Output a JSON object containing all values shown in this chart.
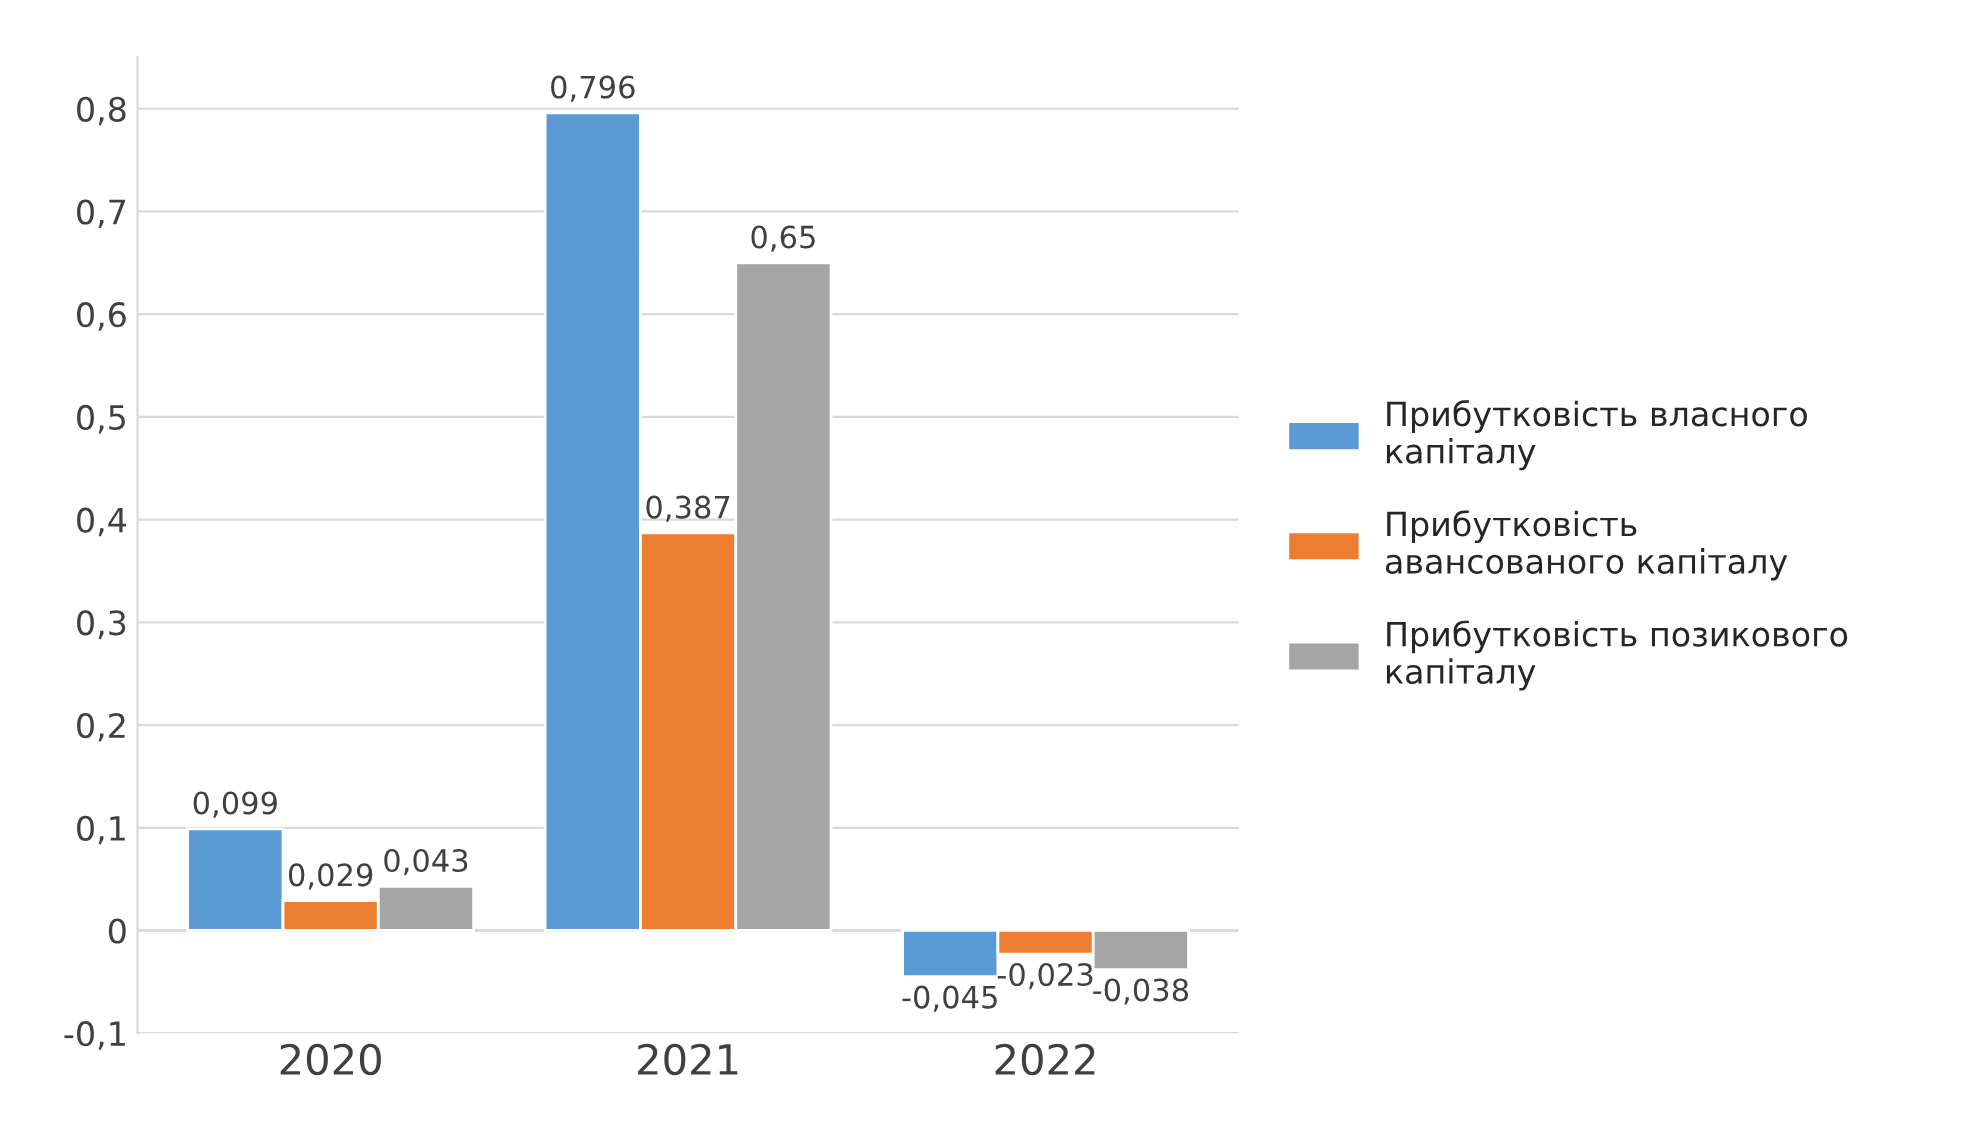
{
  "chart_data": {
    "type": "bar",
    "categories": [
      "2020",
      "2021",
      "2022"
    ],
    "series": [
      {
        "name": "Прибутковість власного\nкапіталу",
        "color": "#5b9bd5",
        "values": [
          0.099,
          0.796,
          -0.045
        ],
        "value_labels": [
          "0,099",
          "0,796",
          "-0,045"
        ]
      },
      {
        "name": "Прибутковість\nавансованого капіталу",
        "color": "#ed7d31",
        "values": [
          0.029,
          0.387,
          -0.023
        ],
        "value_labels": [
          "0,029",
          "0,387",
          "-0,023"
        ]
      },
      {
        "name": "Прибутковість позикового\nкапіталу",
        "color": "#a5a5a5",
        "values": [
          0.043,
          0.65,
          -0.038
        ],
        "value_labels": [
          "0,043",
          "0,65",
          "-0,038"
        ]
      }
    ],
    "ylim": [
      -0.1,
      0.85
    ],
    "yticks": [
      {
        "value": -0.1,
        "label": "-0,1"
      },
      0,
      {
        "value": 0.1,
        "label": "0,1"
      },
      {
        "value": 0.2,
        "label": "0,2"
      },
      {
        "value": 0.3,
        "label": "0,3"
      },
      {
        "value": 0.4,
        "label": "0,4"
      },
      {
        "value": 0.5,
        "label": "0,5"
      },
      {
        "value": 0.6,
        "label": "0,6"
      },
      {
        "value": 0.7,
        "label": "0,7"
      },
      {
        "value": 0.8,
        "label": "0,8"
      }
    ],
    "grid": "y",
    "legend": "right"
  }
}
